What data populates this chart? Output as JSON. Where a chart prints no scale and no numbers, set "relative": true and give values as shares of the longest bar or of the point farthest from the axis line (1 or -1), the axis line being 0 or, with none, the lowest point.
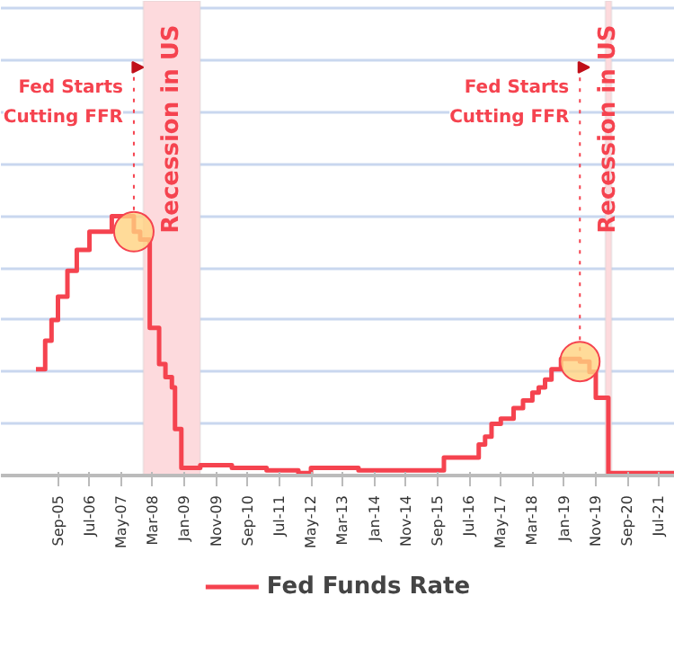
{
  "chart_data": {
    "type": "step",
    "relative": true,
    "x": [
      "2005-02",
      "2005-05",
      "2005-07",
      "2005-09",
      "2005-12",
      "2006-03",
      "2006-07",
      "2007-02",
      "2007-09",
      "2007-11",
      "2008-02",
      "2008-05",
      "2008-07",
      "2008-09",
      "2008-10",
      "2008-12",
      "2009-06",
      "2010-04",
      "2011-03",
      "2012-01",
      "2012-05",
      "2013-08",
      "2014-06",
      "2015-11",
      "2016-10",
      "2016-12",
      "2017-02",
      "2017-05",
      "2017-09",
      "2017-12",
      "2018-03",
      "2018-05",
      "2018-07",
      "2018-09",
      "2018-12",
      "2019-06",
      "2019-09",
      "2019-11",
      "2020-03",
      "2021-12"
    ],
    "series": [
      {
        "name": "Fed Funds Rate",
        "color": "#f5434f",
        "values": [
          0.41,
          0.52,
          0.6,
          0.69,
          0.79,
          0.87,
          0.94,
          1.0,
          0.94,
          0.91,
          0.57,
          0.43,
          0.38,
          0.34,
          0.18,
          0.03,
          0.04,
          0.03,
          0.02,
          0.01,
          0.03,
          0.02,
          0.02,
          0.07,
          0.12,
          0.15,
          0.2,
          0.22,
          0.26,
          0.29,
          0.32,
          0.34,
          0.37,
          0.41,
          0.45,
          0.44,
          0.4,
          0.3,
          0.01,
          0.01
        ]
      }
    ],
    "xlim": [
      "2004-03",
      "2021-12"
    ],
    "xticks": [
      {
        "value": "2005-09",
        "label": "Sep-05"
      },
      {
        "value": "2006-07",
        "label": "Jul-06"
      },
      {
        "value": "2007-05",
        "label": "May-07"
      },
      {
        "value": "2008-03",
        "label": "Mar-08"
      },
      {
        "value": "2009-01",
        "label": "Jan-09"
      },
      {
        "value": "2009-11",
        "label": "Nov-09"
      },
      {
        "value": "2010-09",
        "label": "Sep-10"
      },
      {
        "value": "2011-07",
        "label": "Jul-11"
      },
      {
        "value": "2012-05",
        "label": "May-12"
      },
      {
        "value": "2013-03",
        "label": "Mar-13"
      },
      {
        "value": "2014-01",
        "label": "Jan-14"
      },
      {
        "value": "2014-11",
        "label": "Nov-14"
      },
      {
        "value": "2015-09",
        "label": "Sep-15"
      },
      {
        "value": "2016-07",
        "label": "Jul-16"
      },
      {
        "value": "2017-05",
        "label": "May-17"
      },
      {
        "value": "2018-03",
        "label": "Mar-18"
      },
      {
        "value": "2019-01",
        "label": "Jan-19"
      },
      {
        "value": "2019-11",
        "label": "Nov-19"
      },
      {
        "value": "2020-09",
        "label": "Sep-20"
      },
      {
        "value": "2021-07",
        "label": "Jul-21"
      }
    ],
    "bands": [
      {
        "axis": "x",
        "from": "2007-12",
        "to": "2009-06",
        "label": "Recession in US",
        "color": "#fddadd"
      },
      {
        "axis": "x",
        "from": "2020-02",
        "to": "2020-04",
        "label": "Recession in US",
        "color": "#fddadd"
      }
    ],
    "annotations": [
      {
        "text": "Fed Starts Cutting FFR",
        "x": "2007-09",
        "y": 0.94
      },
      {
        "text": "Fed Starts Cutting FFR",
        "x": "2019-06",
        "y": 0.44
      }
    ],
    "grid": "y",
    "legend": "bottom",
    "line_style": "solid",
    "marker": "none"
  }
}
